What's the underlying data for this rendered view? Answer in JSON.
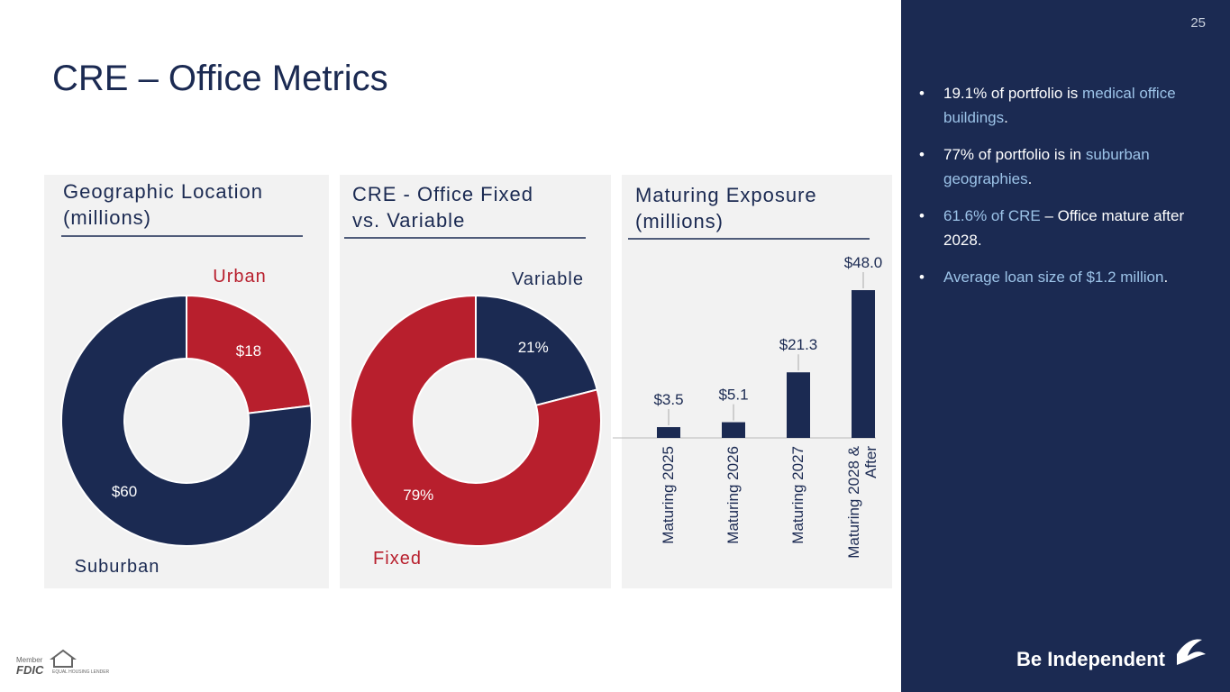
{
  "page_number": "25",
  "title": "CRE – Office Metrics",
  "chart_data": [
    {
      "type": "donut",
      "title": "Geographic Location (millions)",
      "categories": [
        "Urban",
        "Suburban"
      ],
      "values": [
        18,
        60
      ],
      "value_labels": [
        "$18",
        "$60"
      ],
      "colors": [
        "#b81f2d",
        "#1b2a52"
      ]
    },
    {
      "type": "donut",
      "title": "CRE - Office Fixed vs. Variable",
      "categories": [
        "Variable",
        "Fixed"
      ],
      "values": [
        21,
        79
      ],
      "value_labels": [
        "21%",
        "79%"
      ],
      "colors": [
        "#1b2a52",
        "#b81f2d"
      ]
    },
    {
      "type": "bar",
      "title": "Maturing Exposure (millions)",
      "categories": [
        "Maturing 2025",
        "Maturing 2026",
        "Maturing 2027",
        "Maturing 2028 & After"
      ],
      "values": [
        3.5,
        5.1,
        21.3,
        48.0
      ],
      "value_labels": [
        "$3.5",
        "$5.1",
        "$21.3",
        "$48.0"
      ],
      "color": "#1b2a52"
    }
  ],
  "bullets": [
    [
      {
        "text": "19.1% of portfolio is ",
        "accent": false
      },
      {
        "text": "medical office buildings",
        "accent": true
      },
      {
        "text": ".",
        "accent": false
      }
    ],
    [
      {
        "text": "77% of portfolio is in ",
        "accent": false
      },
      {
        "text": "suburban geographies",
        "accent": true
      },
      {
        "text": ".",
        "accent": false
      }
    ],
    [
      {
        "text": "61.6% of CRE",
        "accent": true
      },
      {
        "text": " – Office mature after 2028.",
        "accent": false
      }
    ],
    [
      {
        "text": "Average loan size of $1.2 million",
        "accent": true
      },
      {
        "text": ".",
        "accent": false
      }
    ]
  ],
  "footer": {
    "logo": "Be Independent",
    "member": "Member",
    "fdic": "FDIC",
    "ehl": "EQUAL HOUSING LENDER"
  }
}
